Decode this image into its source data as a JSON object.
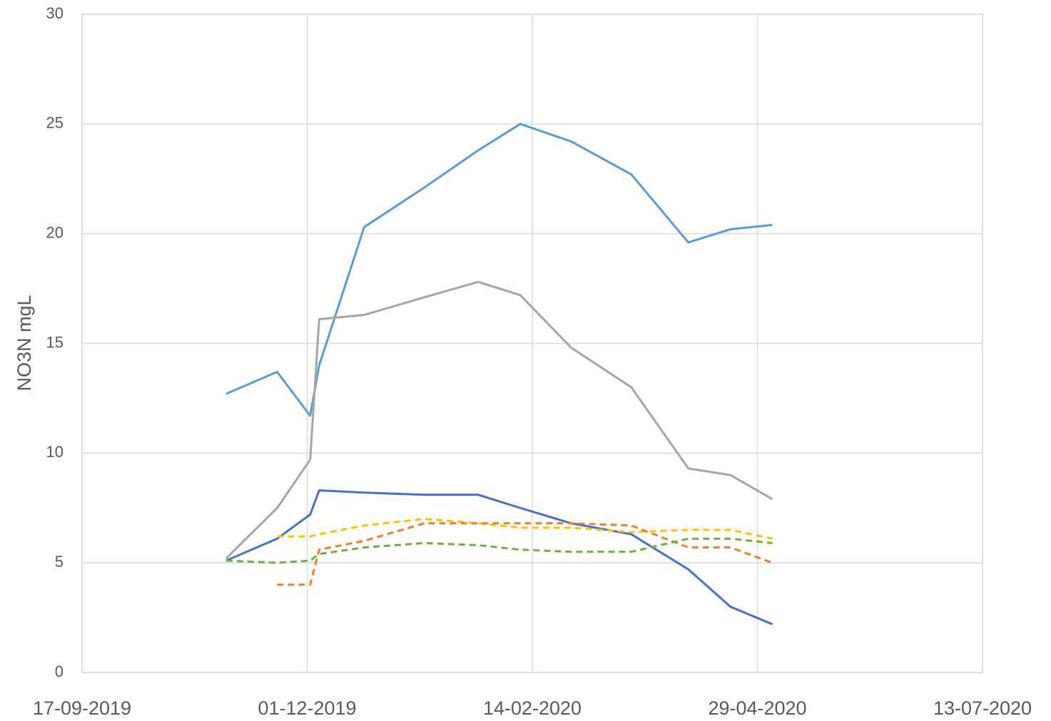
{
  "chart_data": {
    "type": "line",
    "y_label": "NO3N mgL",
    "x": [
      "04-11-2019",
      "21-11-2019",
      "02-12-2019",
      "05-12-2019",
      "20-12-2019",
      "09-01-2020",
      "27-01-2020",
      "10-02-2020",
      "27-02-2020",
      "18-03-2020",
      "06-04-2020",
      "20-04-2020",
      "04-05-2020"
    ],
    "series": [
      {
        "color": "#5b9bd5",
        "dashed": false,
        "values": [
          12.7,
          13.7,
          11.7,
          14.0,
          20.3,
          22.1,
          23.8,
          25.0,
          24.2,
          22.7,
          19.6,
          20.2,
          20.4
        ]
      },
      {
        "color": "#a5a5a5",
        "dashed": false,
        "values": [
          5.2,
          7.5,
          9.7,
          16.1,
          16.3,
          17.1,
          17.8,
          17.2,
          14.8,
          13.0,
          9.3,
          9.0,
          7.9
        ]
      },
      {
        "color": "#4472c4",
        "dashed": false,
        "values": [
          5.1,
          6.1,
          7.2,
          8.3,
          8.2,
          8.1,
          8.1,
          7.5,
          6.8,
          6.3,
          4.7,
          3.0,
          2.2
        ]
      },
      {
        "color": "#ffc000",
        "dashed": true,
        "values": [
          null,
          6.2,
          6.2,
          6.3,
          6.7,
          7.0,
          6.8,
          6.6,
          6.6,
          6.4,
          6.5,
          6.5,
          6.1
        ]
      },
      {
        "color": "#ed7d31",
        "dashed": true,
        "values": [
          null,
          4.0,
          4.0,
          5.6,
          6.0,
          6.8,
          6.8,
          6.8,
          6.8,
          6.7,
          5.7,
          5.7,
          5.0
        ]
      },
      {
        "color": "#70ad47",
        "dashed": true,
        "values": [
          5.1,
          5.0,
          5.1,
          5.4,
          5.7,
          5.9,
          5.8,
          5.6,
          5.5,
          5.5,
          6.1,
          6.1,
          5.9
        ]
      }
    ],
    "xlim": [
      "17-09-2019",
      "13-07-2020"
    ],
    "xticks": [
      "17-09-2019",
      "01-12-2019",
      "14-02-2020",
      "29-04-2020",
      "13-07-2020"
    ],
    "ylim": [
      0,
      30
    ],
    "yticks": [
      0,
      5,
      10,
      15,
      20,
      25,
      30
    ],
    "grid": true
  }
}
